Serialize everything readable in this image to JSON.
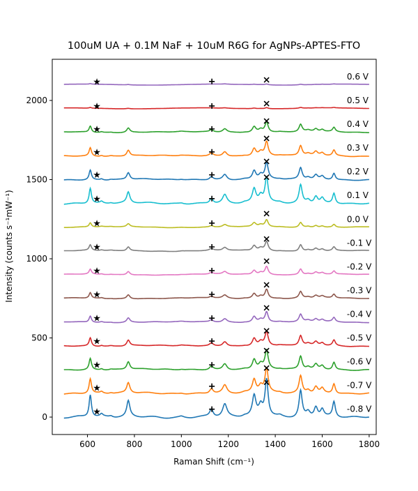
{
  "chart_data": {
    "type": "line",
    "title": "100uM UA + 0.1M NaF + 10uM R6G for AgNPs-APTES-FTO",
    "xlabel": "Raman Shift (cm⁻¹)",
    "ylabel": "Intensity (counts s⁻¹mW⁻¹)",
    "xlim": [
      450,
      1830
    ],
    "ylim": [
      -110,
      2260
    ],
    "xticks": [
      600,
      800,
      1000,
      1200,
      1400,
      1600,
      1800
    ],
    "yticks": [
      0,
      500,
      1000,
      1500,
      2000
    ],
    "grid": false,
    "marker_positions": {
      "star": 640,
      "plus": 1130,
      "cross": 1363
    },
    "peaks": [
      {
        "pos": 612,
        "w": 6,
        "rel": 0.88
      },
      {
        "pos": 660,
        "w": 7,
        "rel": 0.1
      },
      {
        "pos": 700,
        "w": 8,
        "rel": 0.05
      },
      {
        "pos": 774,
        "w": 8,
        "rel": 0.62
      },
      {
        "pos": 1000,
        "w": 12,
        "rel": 0.05
      },
      {
        "pos": 1128,
        "w": 9,
        "rel": 0.3
      },
      {
        "pos": 1185,
        "w": 11,
        "rel": 0.5
      },
      {
        "pos": 1270,
        "w": 12,
        "rel": 0.05
      },
      {
        "pos": 1310,
        "w": 9,
        "rel": 0.78
      },
      {
        "pos": 1338,
        "w": 10,
        "rel": 0.4
      },
      {
        "pos": 1363,
        "w": 8,
        "rel": 1.45
      },
      {
        "pos": 1420,
        "w": 10,
        "rel": 0.05
      },
      {
        "pos": 1508,
        "w": 8,
        "rel": 1.05
      },
      {
        "pos": 1540,
        "w": 10,
        "rel": 0.2
      },
      {
        "pos": 1573,
        "w": 9,
        "rel": 0.4
      },
      {
        "pos": 1600,
        "w": 9,
        "rel": 0.3
      },
      {
        "pos": 1650,
        "w": 7,
        "rel": 0.6
      }
    ],
    "series": [
      {
        "label": "-0.8 V",
        "offset": 0,
        "color": "#1f77b4",
        "scale": 160,
        "marker_y": {
          "star": 35,
          "plus": 50,
          "cross": 220
        }
      },
      {
        "label": "-0.7 V",
        "offset": 150,
        "color": "#ff7f0e",
        "scale": 105,
        "marker_y": {
          "star": 185,
          "plus": 195,
          "cross": 310
        }
      },
      {
        "label": "-0.6 V",
        "offset": 300,
        "color": "#2ca02c",
        "scale": 80,
        "marker_y": {
          "star": 330,
          "plus": 330,
          "cross": 420
        }
      },
      {
        "label": "-0.5 V",
        "offset": 450,
        "color": "#d62728",
        "scale": 60,
        "marker_y": {
          "star": 480,
          "plus": 480,
          "cross": 545
        }
      },
      {
        "label": "-0.4 V",
        "offset": 600,
        "color": "#9467bd",
        "scale": 45,
        "marker_y": {
          "star": 625,
          "plus": 625,
          "cross": 690
        }
      },
      {
        "label": "-0.3 V",
        "offset": 750,
        "color": "#8c564b",
        "scale": 40,
        "marker_y": {
          "star": 775,
          "plus": 775,
          "cross": 835
        }
      },
      {
        "label": "-0.2 V",
        "offset": 900,
        "color": "#e377c2",
        "scale": 35,
        "marker_y": {
          "star": 925,
          "plus": 925,
          "cross": 985
        }
      },
      {
        "label": "-0.1 V",
        "offset": 1050,
        "color": "#7f7f7f",
        "scale": 40,
        "marker_y": {
          "star": 1075,
          "plus": 1075,
          "cross": 1125
        }
      },
      {
        "label": "0.0 V",
        "offset": 1200,
        "color": "#bcbd22",
        "scale": 30,
        "marker_y": {
          "star": 1225,
          "plus": 1225,
          "cross": 1285
        }
      },
      {
        "label": "0.1 V",
        "offset": 1350,
        "color": "#17becf",
        "scale": 110,
        "marker_y": {
          "star": 1380,
          "plus": 1380,
          "cross": 1515
        }
      },
      {
        "label": "0.2 V",
        "offset": 1500,
        "color": "#1f77b4",
        "scale": 70,
        "marker_y": {
          "star": 1530,
          "plus": 1530,
          "cross": 1615
        }
      },
      {
        "label": "0.3 V",
        "offset": 1650,
        "color": "#ff7f0e",
        "scale": 60,
        "marker_y": {
          "star": 1675,
          "plus": 1675,
          "cross": 1760
        }
      },
      {
        "label": "0.4 V",
        "offset": 1800,
        "color": "#2ca02c",
        "scale": 45,
        "marker_y": {
          "star": 1820,
          "plus": 1820,
          "cross": 1870
        }
      },
      {
        "label": "0.5 V",
        "offset": 1950,
        "color": "#d62728",
        "scale": 5,
        "marker_y": {
          "star": 1965,
          "plus": 1965,
          "cross": 1980
        }
      },
      {
        "label": "0.6 V",
        "offset": 2100,
        "color": "#9467bd",
        "scale": 4,
        "marker_y": {
          "star": 2120,
          "plus": 2120,
          "cross": 2130
        }
      }
    ]
  }
}
